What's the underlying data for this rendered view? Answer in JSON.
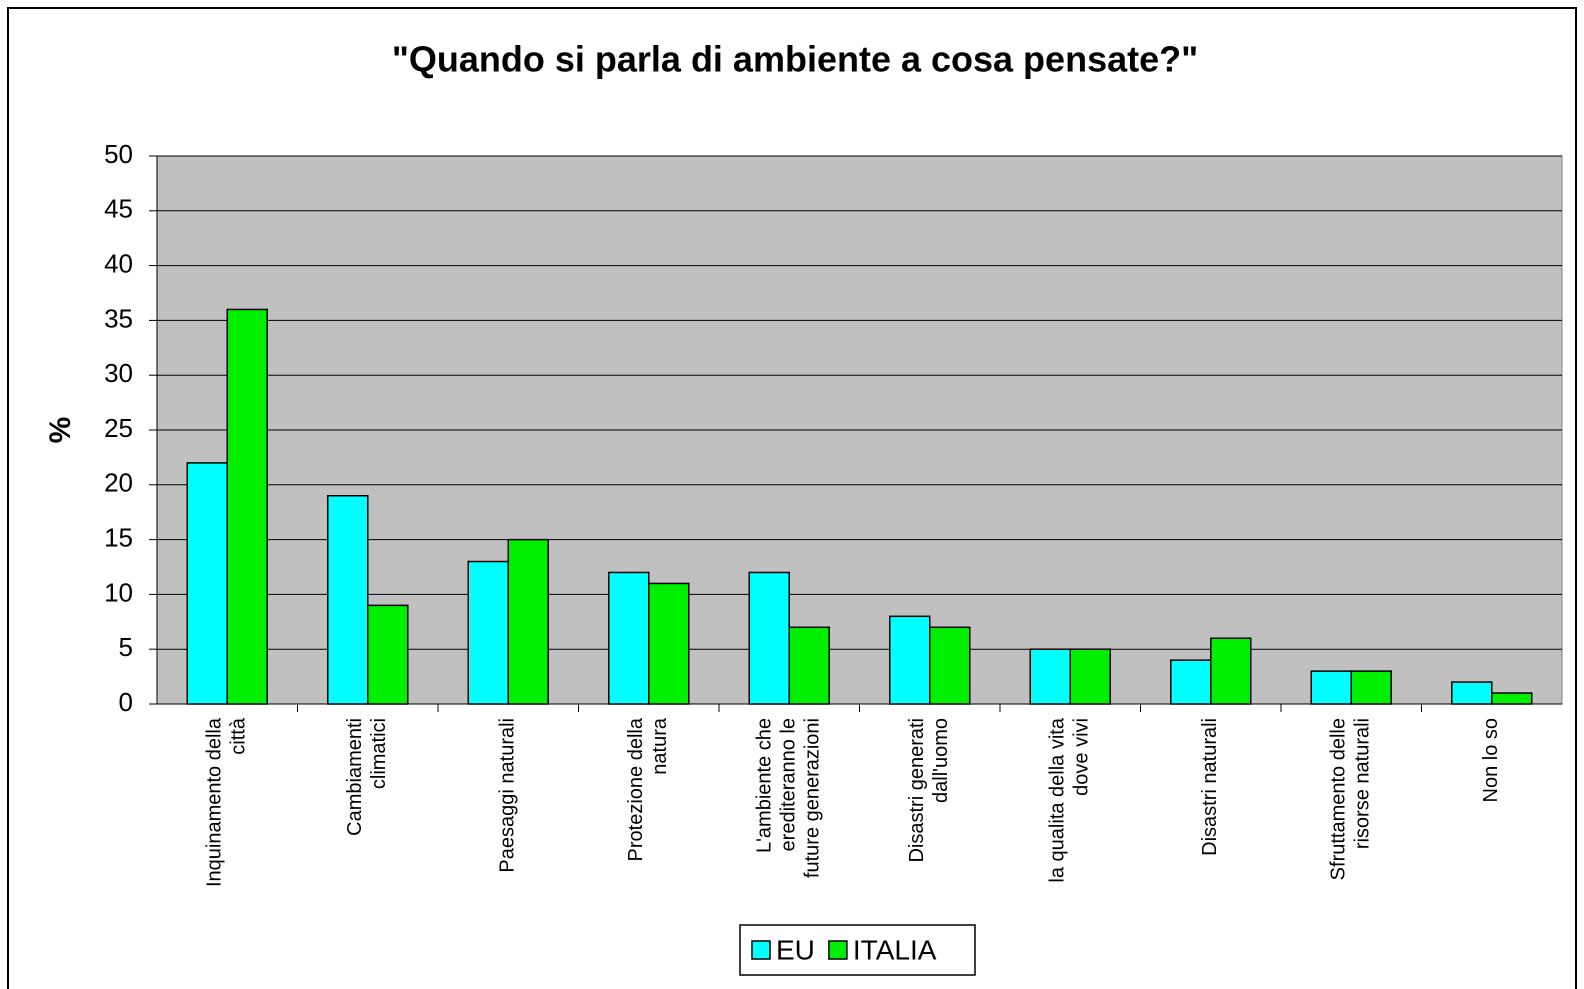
{
  "chart_data": {
    "type": "bar",
    "title": "\"Quando si parla di ambiente a cosa pensate?\"",
    "ylabel": "%",
    "categories": [
      "Inquinamento della\ncittà",
      "Cambiamenti\nclimatici",
      "Paesaggi naturali",
      "Protezione della\nnatura",
      "L'ambiente che\nerediteranno le\nfuture generazioni",
      "Disastri generati\ndall'uomo",
      "la qualita della vita\ndove vivi",
      "Disastri naturali",
      "Sfruttamento delle\nrisorse naturali",
      "Non lo so"
    ],
    "series": [
      {
        "name": "EU",
        "color": "#00ffff",
        "values": [
          22,
          19,
          13,
          12,
          12,
          8,
          5,
          4,
          3,
          2
        ]
      },
      {
        "name": "ITALIA",
        "color": "#00ee00",
        "values": [
          36,
          9,
          15,
          11,
          7,
          7,
          5,
          6,
          3,
          1
        ]
      }
    ],
    "ylim": [
      0,
      50
    ],
    "yticks": [
      0,
      5,
      10,
      15,
      20,
      25,
      30,
      35,
      40,
      45,
      50
    ],
    "grid": true,
    "legend": "bottom"
  }
}
